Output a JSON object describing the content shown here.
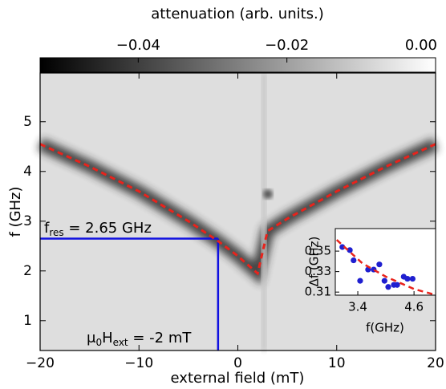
{
  "chart_data": [
    {
      "type": "line",
      "xlabel": "external field (mT)",
      "ylabel": "f (GHz)",
      "xlim": [
        -20,
        20
      ],
      "ylim": [
        0.4,
        5.98
      ],
      "xticks": [
        {
          "value": -20,
          "label": "−20"
        },
        {
          "value": -10,
          "label": "−10"
        },
        0,
        10,
        20
      ],
      "yticks": [
        1,
        2,
        3,
        4,
        5
      ],
      "series": [
        {
          "color": "#e8231c",
          "style": "dashed",
          "x": [
            -20,
            -15,
            -10,
            -5,
            -2,
            0,
            2,
            3,
            5,
            10,
            15,
            20
          ],
          "values": [
            4.55,
            4.1,
            3.6,
            3.0,
            2.6,
            2.3,
            1.95,
            2.8,
            3.05,
            3.6,
            4.1,
            4.55
          ]
        }
      ],
      "colorbar": {
        "label": "attenuation (arb. units.)",
        "clim": [
          -0.0532,
          0
        ],
        "ticks": [
          {
            "value": -0.04,
            "label": "−0.04"
          },
          {
            "value": -0.02,
            "label": "−0.02"
          },
          {
            "value": 0,
            "label": "0.00"
          }
        ]
      },
      "markers": {
        "color": "#1010e0",
        "frequency": 2.65,
        "field": -2
      },
      "annotations": {
        "frequency": [
          "f",
          "res",
          " = 2.65 GHz"
        ],
        "field": [
          "μ",
          "0",
          "H",
          "ext",
          " = -2 mT"
        ]
      }
    },
    {
      "type": "scatter",
      "xlabel": "f(GHz)",
      "ylabel": "Δf (GHz)",
      "xlim": [
        2.92,
        5.06
      ],
      "ylim": [
        0.307,
        0.372
      ],
      "xticks": [
        3.4,
        4.6
      ],
      "yticks": [
        0.31,
        0.33,
        0.35
      ],
      "series": [
        {
          "color": "#1f1fd0",
          "style": "points",
          "x": [
            3.07,
            3.23,
            3.31,
            3.45,
            3.62,
            3.74,
            3.86,
            3.97,
            4.05,
            4.17,
            4.24,
            4.38,
            4.46,
            4.57
          ],
          "values": [
            0.354,
            0.351,
            0.341,
            0.321,
            0.332,
            0.332,
            0.337,
            0.321,
            0.315,
            0.317,
            0.317,
            0.325,
            0.323,
            0.323
          ]
        },
        {
          "color": "#e8231c",
          "style": "dashed",
          "x": [
            2.95,
            3.5,
            4.0,
            4.6,
            5.0
          ],
          "values": [
            0.361,
            0.338,
            0.325,
            0.313,
            0.308
          ]
        }
      ]
    }
  ]
}
